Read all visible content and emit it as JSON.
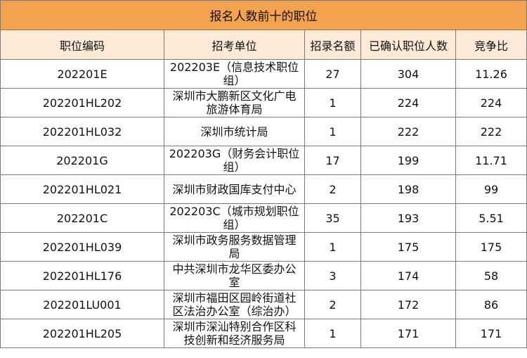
{
  "table": {
    "title": "报名人数前十的职位",
    "columns": [
      "职位编码",
      "招考单位",
      "招录名额",
      "已确认职位人数",
      "竞争比"
    ],
    "rows": [
      {
        "code": "202201E",
        "unit": "202203E（信息技术职位组）",
        "quota": "27",
        "confirmed": "304",
        "ratio": "11.26"
      },
      {
        "code": "202201HL202",
        "unit": "深圳市大鹏新区文化广电旅游体育局",
        "quota": "1",
        "confirmed": "224",
        "ratio": "224"
      },
      {
        "code": "202201HL032",
        "unit": "深圳市统计局",
        "quota": "1",
        "confirmed": "222",
        "ratio": "222"
      },
      {
        "code": "202201G",
        "unit": "202203G（财务会计职位组）",
        "quota": "17",
        "confirmed": "199",
        "ratio": "11.71"
      },
      {
        "code": "202201HL021",
        "unit": "深圳市财政国库支付中心",
        "quota": "2",
        "confirmed": "198",
        "ratio": "99"
      },
      {
        "code": "202201C",
        "unit": "202203C（城市规划职位组）",
        "quota": "35",
        "confirmed": "193",
        "ratio": "5.51"
      },
      {
        "code": "202201HL039",
        "unit": "深圳市政务服务数据管理局",
        "quota": "1",
        "confirmed": "175",
        "ratio": "175"
      },
      {
        "code": "202201HL176",
        "unit": "中共深圳市龙华区委办公室",
        "quota": "3",
        "confirmed": "174",
        "ratio": "58"
      },
      {
        "code": "202201LU001",
        "unit": "深圳市福田区园岭街道社区法治办公室（综治办）",
        "quota": "2",
        "confirmed": "172",
        "ratio": "86"
      },
      {
        "code": "202201HL205",
        "unit": "深圳市深汕特别合作区科技创新和经济服务局",
        "quota": "1",
        "confirmed": "171",
        "ratio": "171"
      }
    ]
  }
}
